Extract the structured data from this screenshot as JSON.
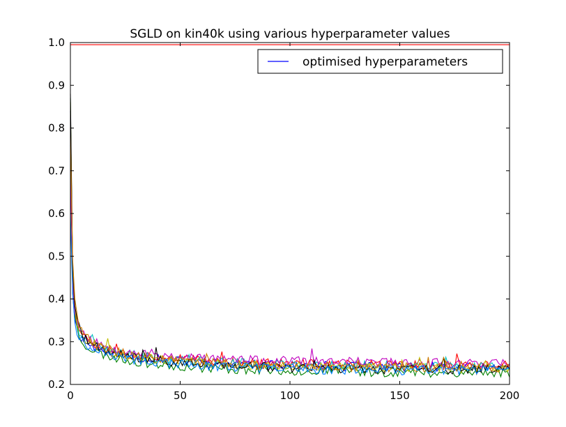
{
  "chart_data": {
    "type": "line",
    "title": "SGLD on kin40k using various hyperparameter values",
    "xlabel": "",
    "ylabel": "",
    "xlim": [
      0,
      200
    ],
    "ylim": [
      0.2,
      1.0
    ],
    "xticks": [
      "0",
      "50",
      "100",
      "150",
      "200"
    ],
    "yticks": [
      "0.2",
      "0.3",
      "0.4",
      "0.5",
      "0.6",
      "0.7",
      "0.8",
      "0.9",
      "1.0"
    ],
    "grid": false,
    "legend": {
      "position": "top-right",
      "entries": [
        "optimised hyperparameters"
      ]
    },
    "reference_line": {
      "y": 0.995,
      "color": "#ff0000"
    },
    "series": [
      {
        "name": "optimised hyperparameters",
        "color": "#0000ff",
        "start": 0.84,
        "d1": 0.38,
        "floor": 0.238,
        "noise_seed": 11
      },
      {
        "color": "#008000",
        "start": 0.87,
        "d1": 0.4,
        "floor": 0.225,
        "noise_seed": 23
      },
      {
        "color": "#ff0000",
        "start": 0.8,
        "d1": 0.42,
        "floor": 0.242,
        "noise_seed": 37
      },
      {
        "color": "#00bfbf",
        "start": 0.76,
        "d1": 0.4,
        "floor": 0.24,
        "noise_seed": 41
      },
      {
        "color": "#bf00bf",
        "start": 0.7,
        "d1": 0.41,
        "floor": 0.248,
        "noise_seed": 53
      },
      {
        "color": "#bfbf00",
        "start": 0.86,
        "d1": 0.43,
        "floor": 0.235,
        "noise_seed": 67
      },
      {
        "color": "#000000",
        "start": 0.88,
        "d1": 0.44,
        "floor": 0.232,
        "noise_seed": 71
      },
      {
        "color": "#cc7a00",
        "start": 0.78,
        "d1": 0.46,
        "floor": 0.236,
        "noise_seed": 83
      },
      {
        "color": "#0080ff",
        "start": 0.6,
        "d1": 0.38,
        "floor": 0.23,
        "noise_seed": 97
      }
    ]
  }
}
